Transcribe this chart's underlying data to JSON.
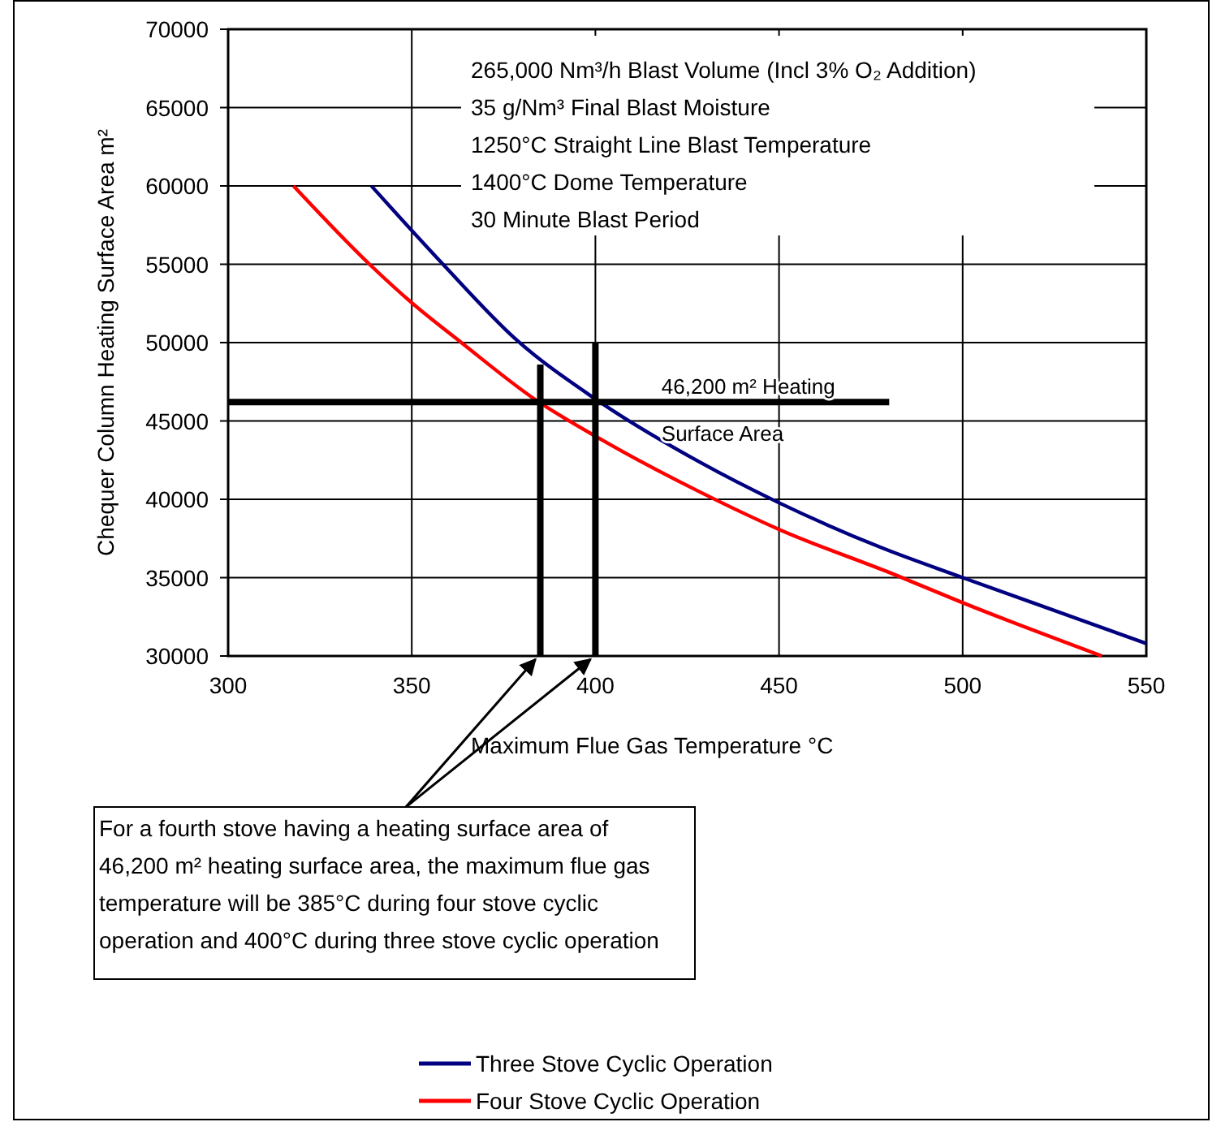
{
  "chart_data": {
    "type": "line",
    "xlabel": "Maximum Flue Gas Temperature °C",
    "ylabel": "Chequer Column Heating Surface Area m²",
    "xlim": [
      300,
      550
    ],
    "xticks": [
      300,
      350,
      400,
      450,
      500,
      550
    ],
    "ylim": [
      30000,
      70000
    ],
    "yticks": [
      30000,
      35000,
      40000,
      45000,
      50000,
      55000,
      60000,
      65000,
      70000
    ],
    "grid": true,
    "legend": "bottom",
    "line_style": "solid",
    "marker": "none",
    "series": [
      {
        "name": "Three Stove Cyclic Operation",
        "color": "#000080",
        "x": [
          339,
          358.5,
          378.4,
          400,
          428.2,
          449.8,
          478,
          500,
          550
        ],
        "values": [
          60000,
          55000,
          50200,
          46400,
          42400,
          39800,
          36900,
          35000,
          30800
        ]
      },
      {
        "name": "Four Stove Cyclic Operation",
        "color": "#ff0000",
        "x": [
          317.8,
          338.5,
          350.2,
          363.5,
          383.4,
          401.7,
          428.2,
          449.8,
          481.4,
          500,
          537.9
        ],
        "values": [
          60000,
          55000,
          52500,
          50000,
          46400,
          43800,
          40500,
          38100,
          35200,
          33400,
          30000
        ]
      },
      {
        "color": "#000000",
        "x": [
          300,
          480
        ],
        "values": [
          46200,
          46200
        ]
      },
      {
        "color": "#000000",
        "x": [
          385,
          385
        ],
        "values": [
          30000,
          48600
        ]
      },
      {
        "color": "#000000",
        "x": [
          400,
          400
        ],
        "values": [
          30000,
          50000
        ]
      }
    ],
    "annotations": [
      "265,000 Nm³/h Blast Volume (Incl 3% O₂ Addition)",
      "35 g/Nm³ Final Blast Moisture",
      "1250°C Straight Line Blast Temperature",
      "1400°C Dome Temperature",
      "30 Minute Blast Period",
      {
        "text": "46,200 m² Heating Surface Area",
        "x": 418,
        "y": 46200
      },
      "For a fourth stove having a heating surface area of 46,200 m² heating surface area, the maximum flue gas temperature will be 385°C during four stove cyclic operation and 400°C during three stove cyclic operation"
    ]
  }
}
